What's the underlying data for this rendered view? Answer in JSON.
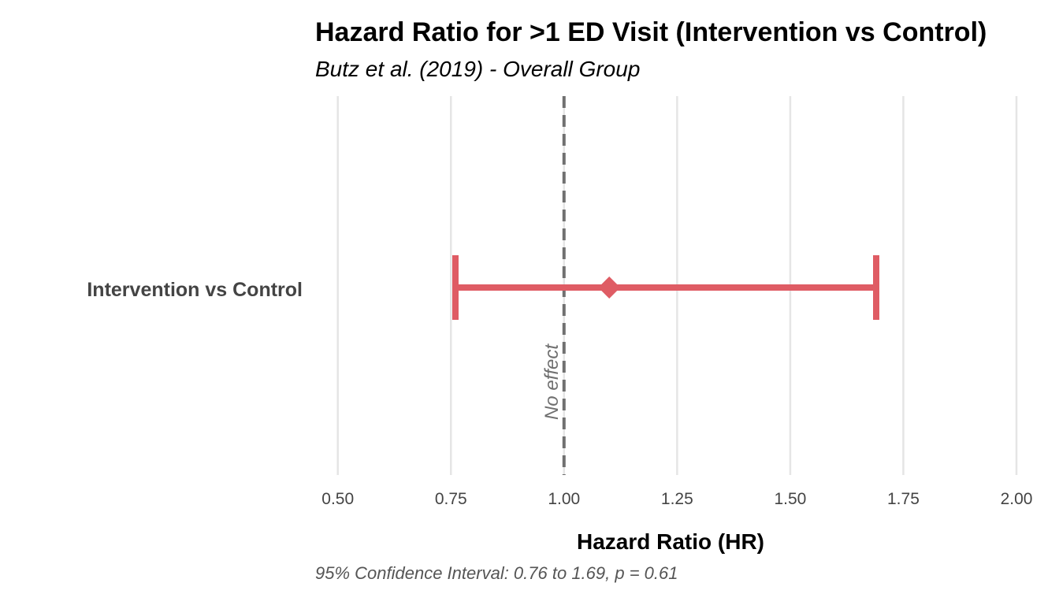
{
  "chart_data": {
    "type": "forest",
    "title": "Hazard Ratio for >1 ED Visit (Intervention vs Control)",
    "subtitle": "Butz et al. (2019) - Overall Group",
    "xlabel": "Hazard Ratio (HR)",
    "caption": "95% Confidence Interval: 0.76 to 1.69, p = 0.61",
    "xlim": [
      0.45,
      2.0
    ],
    "x_ticks": [
      0.5,
      0.75,
      1.0,
      1.25,
      1.5,
      1.75,
      2.0
    ],
    "x_tick_labels": [
      "0.50",
      "0.75",
      "1.00",
      "1.25",
      "1.50",
      "1.75",
      "2.00"
    ],
    "grid": "vertical-major",
    "reference_line": {
      "x": 1.0,
      "label": "No effect",
      "color": "#707070",
      "style": "dashed"
    },
    "series": [
      {
        "category": "Intervention vs Control",
        "estimate": 1.1,
        "ci_lower": 0.76,
        "ci_upper": 1.69,
        "p_value": 0.61,
        "color": "#df5c64"
      }
    ]
  }
}
